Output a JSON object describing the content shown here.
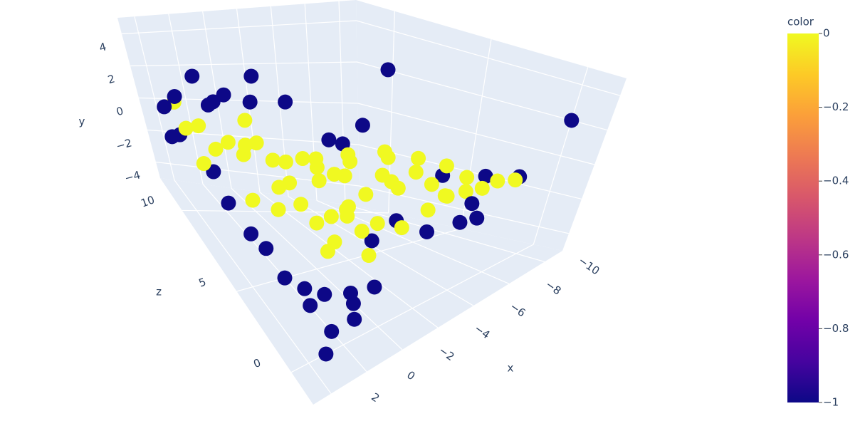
{
  "chart_data": {
    "type": "scatter3d",
    "xlabel": "x",
    "ylabel": "y",
    "zlabel": "z",
    "x": [
      1,
      0.5,
      0,
      -0.5,
      -1,
      -1.5,
      -2,
      -2.5,
      -3,
      -3.5,
      -4,
      -4.5,
      -5,
      -5.5,
      -6,
      -6.5,
      -7,
      -7.5,
      -8,
      -8.5,
      -9,
      -9.8,
      -3,
      -4,
      -3.5,
      -2.5,
      -4.5,
      -5,
      -3,
      -4,
      -2,
      -5.5,
      -6,
      -1.5,
      -2,
      -3.8,
      -1,
      -6.5,
      -7,
      -0.5,
      -4.2,
      -5.2,
      -2.8,
      -3.3,
      0,
      -6.8,
      -1.2,
      -4.8,
      -7.8,
      -8.2,
      1.5,
      0.8,
      -2.2,
      -9,
      0,
      0,
      1,
      1.5,
      2,
      1,
      -1,
      -2,
      -6,
      -11,
      -10,
      -4,
      -3,
      -4.5,
      1,
      1,
      0.5,
      0,
      0,
      -0.5,
      -1,
      1,
      0,
      -1,
      -2,
      -1.5,
      0.5,
      -2.5,
      -6,
      -7,
      -5,
      -8,
      -9,
      -10,
      -8,
      -8.5,
      -1,
      -2.5,
      -3
    ],
    "y": [
      -1,
      -0.5,
      -1.5,
      -0.8,
      -1.2,
      -0.3,
      -1,
      -2,
      -0.5,
      -1.5,
      -1,
      -0.2,
      -1.8,
      -0.7,
      -1.3,
      -0.4,
      -1,
      -1.6,
      -0.6,
      -1.2,
      -0.9,
      -1.1,
      -2.5,
      -3,
      -2,
      -3,
      -2.5,
      -1.5,
      0,
      0.5,
      -2.2,
      -2.8,
      0.2,
      -1.8,
      -3.5,
      -3.8,
      -2.6,
      -2,
      0,
      0,
      -1.4,
      0.6,
      -1.1,
      -4,
      -2.4,
      -1.7,
      0.3,
      -3.4,
      -0.3,
      -2.1,
      -1.5,
      -0.2,
      -0.1,
      -2,
      2,
      1,
      0.5,
      -0.5,
      -1.5,
      -2,
      1.5,
      3,
      4.5,
      2,
      -1,
      2.5,
      1.5,
      0.5,
      -2,
      -3,
      -4,
      -4.5,
      -5,
      -5,
      -4.8,
      -5,
      -5,
      -4.5,
      -5,
      -4,
      -4.2,
      -3.8,
      -3,
      -3.5,
      -4,
      -3,
      -2.5,
      -1.5,
      -1,
      -2.8,
      0.5,
      1,
      2
    ],
    "z": [
      11,
      10.5,
      10,
      9.5,
      9,
      8.5,
      8,
      7.5,
      7,
      6.5,
      6,
      5.5,
      5,
      4.5,
      4,
      3.5,
      3,
      2.5,
      2,
      1.5,
      1.2,
      1,
      5,
      4,
      4.5,
      5.5,
      3.5,
      6.5,
      6,
      5,
      6,
      3,
      5,
      7,
      4,
      3.2,
      6.5,
      2.5,
      4,
      8,
      7.5,
      3.8,
      3.4,
      5.2,
      7.2,
      5.4,
      5.8,
      6.1,
      3.1,
      3.4,
      9,
      12,
      10.2,
      3,
      11,
      10,
      11.5,
      12,
      11,
      11.8,
      10,
      9,
      5,
      0,
      1,
      4,
      5,
      6,
      9,
      8,
      7,
      6.5,
      5,
      4,
      3,
      0,
      1,
      0.5,
      2,
      1.5,
      2,
      1,
      4,
      3,
      4.5,
      2,
      2.5,
      3,
      3.5,
      1.5,
      11,
      10,
      8
    ],
    "color": [
      0,
      0,
      0,
      0,
      0,
      0,
      0,
      0,
      0,
      0,
      0,
      0,
      0,
      0,
      0,
      0,
      0,
      0,
      0,
      0,
      0,
      0,
      0,
      0,
      0,
      0,
      0,
      0,
      0,
      0,
      0,
      0,
      0,
      0,
      0,
      0,
      0,
      0,
      0,
      0,
      0,
      0,
      0,
      0,
      0,
      0,
      0,
      0,
      0,
      0,
      0,
      0,
      0,
      0,
      -1,
      -1,
      -1,
      -1,
      -1,
      -1,
      -1,
      -1,
      -1,
      -1,
      -1,
      -1,
      -1,
      -1,
      -1,
      -1,
      -1,
      -1,
      -1,
      -1,
      -1,
      -1,
      -1,
      -1,
      -1,
      -1,
      -1,
      -1,
      -1,
      -1,
      -1,
      -1,
      -1,
      -1,
      -1,
      -1,
      -1,
      -1,
      -1
    ],
    "colorscale": [
      "#0d0887",
      "#46039f",
      "#7201a8",
      "#9c179e",
      "#bd3786",
      "#d8576b",
      "#ed7953",
      "#fb9f3a",
      "#fdca26",
      "#f0f921"
    ],
    "xlim": [
      -11,
      3
    ],
    "ylim": [
      -5,
      5
    ],
    "zlim": [
      -2,
      12
    ],
    "xticks": [
      {
        "value": -10,
        "label": "−10"
      },
      {
        "value": -8,
        "label": "−8"
      },
      {
        "value": -6,
        "label": "−6"
      },
      {
        "value": -4,
        "label": "−4"
      },
      {
        "value": -2,
        "label": "−2"
      },
      0,
      2
    ],
    "yticks": [
      {
        "value": -4,
        "label": "−4"
      },
      {
        "value": -2,
        "label": "−2"
      },
      0,
      2,
      4
    ],
    "zticks": [
      0,
      5,
      10
    ],
    "colorbar": {
      "title": "color",
      "lim": [
        -1,
        0
      ],
      "ticks": [
        0,
        {
          "value": -0.2,
          "label": "−0.2"
        },
        {
          "value": -0.4,
          "label": "−0.4"
        },
        {
          "value": -0.6,
          "label": "−0.6"
        },
        {
          "value": -0.8,
          "label": "−0.8"
        },
        {
          "value": -1,
          "label": "−1"
        }
      ]
    }
  }
}
